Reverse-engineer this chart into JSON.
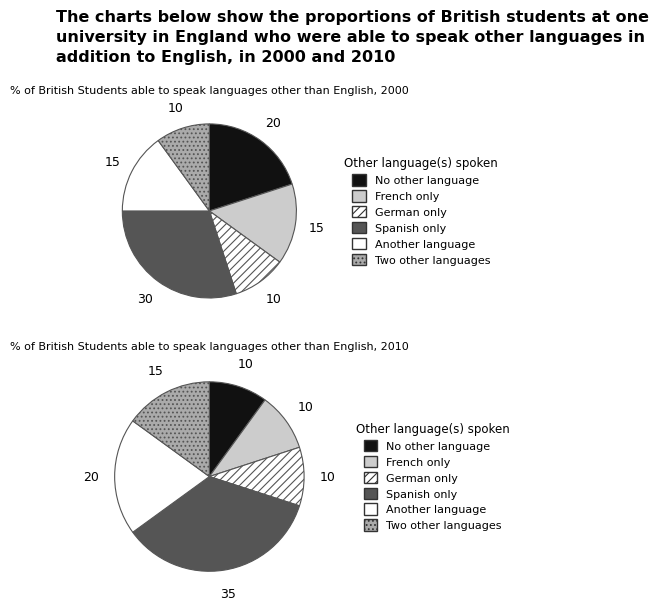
{
  "title_line1": "The charts below show the proportions of British students at one",
  "title_line2": "university in England who were able to speak other languages in",
  "title_line3": "addition to English, in 2000 and 2010",
  "chart1_title": "% of British Students able to speak languages other than English, 2000",
  "chart2_title": "% of British Students able to speak languages other than English, 2010",
  "legend_title": "Other language(s) spoken",
  "categories": [
    "No other language",
    "French only",
    "German only",
    "Spanish only",
    "Another language",
    "Two other languages"
  ],
  "values_2000": [
    20,
    15,
    10,
    30,
    15,
    10
  ],
  "values_2010": [
    10,
    10,
    10,
    35,
    20,
    15
  ],
  "face_colors": [
    "#111111",
    "#cccccc",
    "#ffffff",
    "#555555",
    "#ffffff",
    "#aaaaaa"
  ],
  "hatch_patterns": [
    "",
    "",
    "////",
    "",
    "",
    "...."
  ],
  "bg_color": "#ffffff",
  "text_color": "#000000",
  "title_fontsize": 11.5,
  "subtitle_fontsize": 8,
  "label_fontsize": 9,
  "legend_fontsize": 8,
  "legend_title_fontsize": 8.5
}
